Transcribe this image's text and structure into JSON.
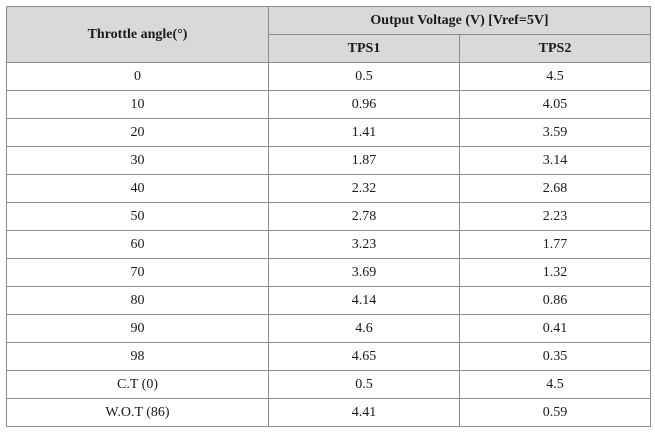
{
  "table": {
    "header": {
      "col1": "Throttle angle(°)",
      "group": "Output Voltage (V) [Vref=5V]",
      "sub1": "TPS1",
      "sub2": "TPS2"
    },
    "rows": [
      {
        "angle": "0",
        "tps1": "0.5",
        "tps2": "4.5"
      },
      {
        "angle": "10",
        "tps1": "0.96",
        "tps2": "4.05"
      },
      {
        "angle": "20",
        "tps1": "1.41",
        "tps2": "3.59"
      },
      {
        "angle": "30",
        "tps1": "1.87",
        "tps2": "3.14"
      },
      {
        "angle": "40",
        "tps1": "2.32",
        "tps2": "2.68"
      },
      {
        "angle": "50",
        "tps1": "2.78",
        "tps2": "2.23"
      },
      {
        "angle": "60",
        "tps1": "3.23",
        "tps2": "1.77"
      },
      {
        "angle": "70",
        "tps1": "3.69",
        "tps2": "1.32"
      },
      {
        "angle": "80",
        "tps1": "4.14",
        "tps2": "0.86"
      },
      {
        "angle": "90",
        "tps1": "4.6",
        "tps2": "0.41"
      },
      {
        "angle": "98",
        "tps1": "4.65",
        "tps2": "0.35"
      },
      {
        "angle": "C.T (0)",
        "tps1": "0.5",
        "tps2": "4.5"
      },
      {
        "angle": "W.O.T (86)",
        "tps1": "4.41",
        "tps2": "0.59"
      }
    ]
  }
}
